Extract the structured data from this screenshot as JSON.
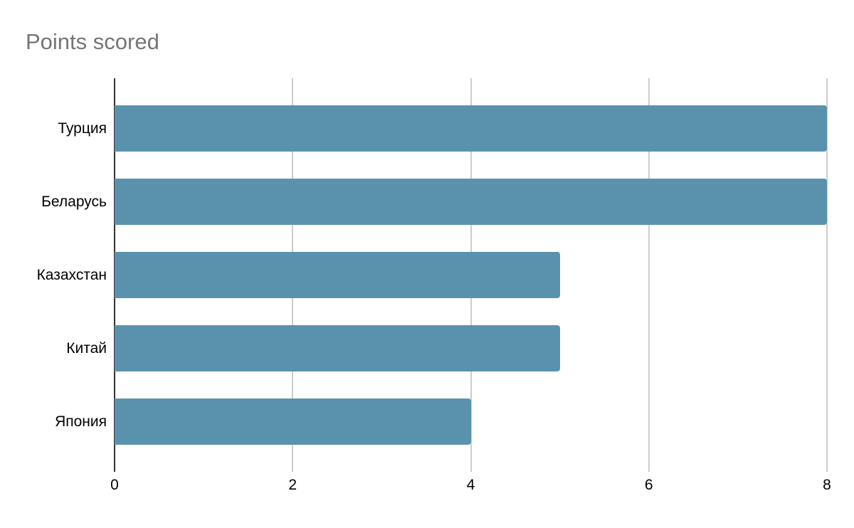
{
  "chart_data": {
    "type": "bar",
    "orientation": "horizontal",
    "title": "Points scored",
    "categories": [
      "Турция",
      "Беларусь",
      "Казахстан",
      "Китай",
      "Япония"
    ],
    "values": [
      8,
      8,
      5,
      5,
      4
    ],
    "xlabel": "",
    "ylabel": "",
    "xlim": [
      0,
      8
    ],
    "xticks": [
      0,
      2,
      4,
      6,
      8
    ],
    "tick_labels": [
      "0",
      "2",
      "4",
      "6",
      "8"
    ],
    "grid": true,
    "legend": "none",
    "colors": {
      "bar": "#5a92ae",
      "title": "#757575",
      "axis_line": "#333333",
      "gridline": "#cccccc",
      "label_text": "#000000"
    }
  }
}
